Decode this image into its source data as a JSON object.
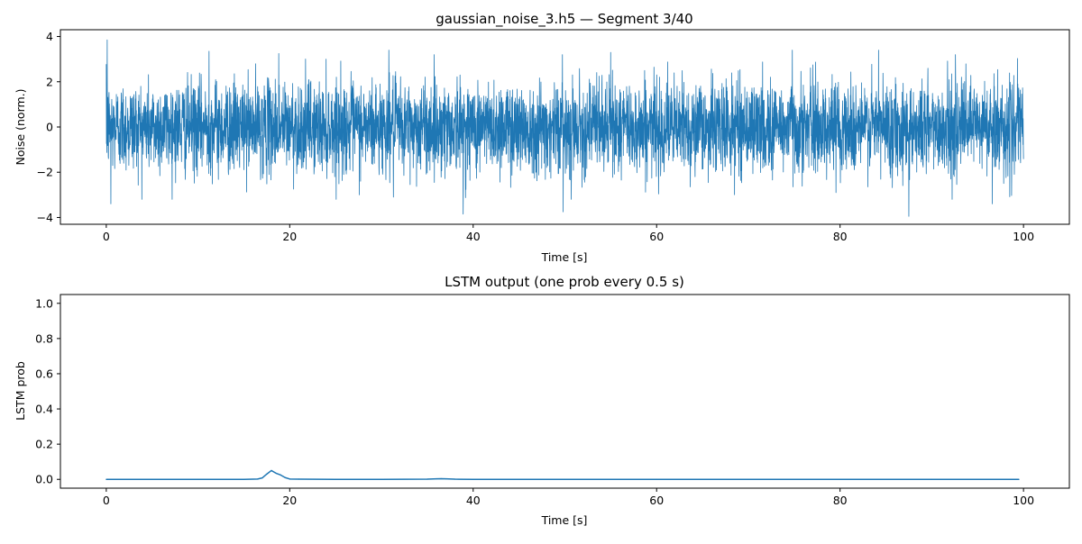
{
  "chart_data": [
    {
      "type": "line",
      "title": "gaussian_noise_3.h5 — Segment 3/40",
      "xlabel": "Time [s]",
      "ylabel": "Noise (norm.)",
      "xlim": [
        -5,
        105
      ],
      "ylim": [
        -4.3,
        4.3
      ],
      "xticks": [
        0,
        20,
        40,
        60,
        80,
        100
      ],
      "xtick_labels": [
        "0",
        "20",
        "40",
        "60",
        "80",
        "100"
      ],
      "yticks": [
        -4,
        -2,
        0,
        2,
        4
      ],
      "ytick_labels": [
        "−4",
        "−2",
        "0",
        "2",
        "4"
      ],
      "grid": false,
      "color": "#1f77b4",
      "series": [
        {
          "x_range": [
            0,
            100
          ],
          "distribution": "gaussian",
          "mean": 0,
          "std": 1,
          "max": 3.85,
          "min": -3.95,
          "peaks": [
            {
              "x": 0.1,
              "y": 3.85
            },
            {
              "x": 0.5,
              "y": -3.4
            },
            {
              "x": 11.2,
              "y": 3.35
            },
            {
              "x": 18.8,
              "y": 3.25
            },
            {
              "x": 30.8,
              "y": 3.4
            },
            {
              "x": 31.3,
              "y": -3.1
            },
            {
              "x": 38.9,
              "y": -3.85
            },
            {
              "x": 49.8,
              "y": -3.75
            },
            {
              "x": 55.0,
              "y": 3.3
            },
            {
              "x": 74.8,
              "y": 3.4
            },
            {
              "x": 84.2,
              "y": 3.4
            },
            {
              "x": 87.5,
              "y": -3.95
            },
            {
              "x": 96.6,
              "y": -3.4
            }
          ]
        }
      ]
    },
    {
      "type": "line",
      "title": "LSTM output (one prob every 0.5 s)",
      "xlabel": "Time [s]",
      "ylabel": "LSTM prob",
      "xlim": [
        -5,
        105
      ],
      "ylim": [
        -0.05,
        1.05
      ],
      "xticks": [
        0,
        20,
        40,
        60,
        80,
        100
      ],
      "xtick_labels": [
        "0",
        "20",
        "40",
        "60",
        "80",
        "100"
      ],
      "yticks": [
        0.0,
        0.2,
        0.4,
        0.6,
        0.8,
        1.0
      ],
      "ytick_labels": [
        "0.0",
        "0.2",
        "0.4",
        "0.6",
        "0.8",
        "1.0"
      ],
      "grid": false,
      "color": "#1f77b4",
      "series": [
        {
          "x": [
            0,
            5,
            10,
            15,
            16.5,
            17,
            17.5,
            18,
            18.5,
            19,
            19.5,
            20,
            21,
            25,
            30,
            35,
            36,
            36.5,
            37,
            38,
            40,
            50,
            60,
            70,
            80,
            90,
            99.5
          ],
          "y": [
            0,
            0,
            0,
            0,
            0.002,
            0.008,
            0.03,
            0.05,
            0.035,
            0.025,
            0.01,
            0.002,
            0.001,
            0,
            0,
            0.001,
            0.003,
            0.004,
            0.003,
            0.001,
            0,
            0,
            0,
            0,
            0,
            0,
            0
          ]
        }
      ]
    }
  ]
}
